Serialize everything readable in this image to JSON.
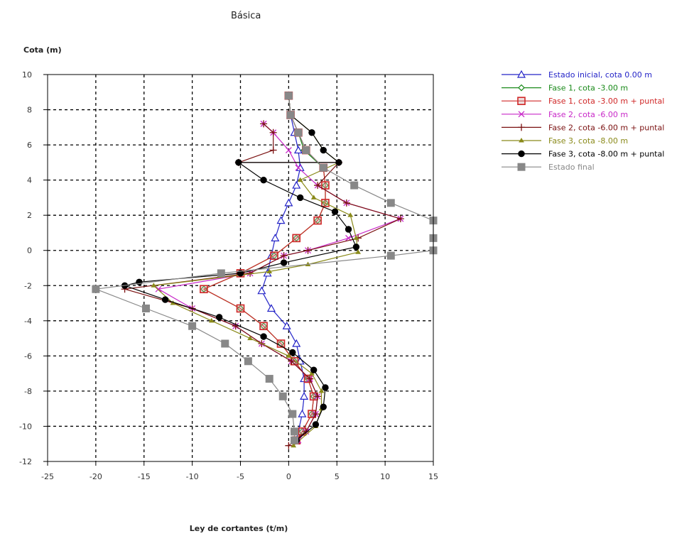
{
  "chart_data": {
    "type": "line",
    "title": "Básica",
    "xlabel": "Ley de cortantes (t/m)",
    "ylabel": "Cota (m)",
    "xlim": [
      -25,
      15
    ],
    "ylim": [
      -12,
      10
    ],
    "xticks": [
      -25,
      -20,
      -15,
      -10,
      -5,
      0,
      5,
      10,
      15
    ],
    "yticks": [
      10,
      8,
      6,
      4,
      2,
      0,
      -2,
      -4,
      -6,
      -8,
      -10,
      -12
    ],
    "grid": true,
    "legend_position": "right",
    "series": [
      {
        "name": "Estado inicial, cota 0.00 m",
        "color": "#2424c8",
        "marker": "triangle-open",
        "points": [
          [
            0.0,
            8.8
          ],
          [
            0.2,
            7.7
          ],
          [
            0.6,
            6.7
          ],
          [
            1.0,
            5.7
          ],
          [
            1.2,
            4.7
          ],
          [
            0.8,
            3.7
          ],
          [
            0.0,
            2.7
          ],
          [
            -0.8,
            1.7
          ],
          [
            -1.4,
            0.7
          ],
          [
            -1.8,
            -0.3
          ],
          [
            -2.2,
            -1.3
          ],
          [
            -2.8,
            -2.3
          ],
          [
            -1.8,
            -3.3
          ],
          [
            -0.2,
            -4.3
          ],
          [
            0.8,
            -5.3
          ],
          [
            1.2,
            -6.3
          ],
          [
            1.6,
            -7.3
          ],
          [
            1.6,
            -8.3
          ],
          [
            1.4,
            -9.3
          ],
          [
            1.0,
            -10.3
          ],
          [
            0.8,
            -10.8
          ]
        ]
      },
      {
        "name": "Fase 1, cota -3.00 m",
        "color": "#1a8a1a",
        "marker": "diamond-open",
        "points": [
          [
            0.0,
            8.8
          ],
          [
            0.2,
            7.7
          ],
          [
            1.0,
            6.7
          ],
          [
            1.6,
            5.7
          ],
          [
            3.6,
            4.7
          ],
          [
            3.8,
            3.7
          ],
          [
            3.8,
            2.7
          ],
          [
            3.0,
            1.7
          ],
          [
            0.8,
            0.7
          ],
          [
            -1.5,
            -0.3
          ],
          [
            -5.0,
            -1.3
          ],
          [
            -8.8,
            -2.2
          ],
          [
            -5.0,
            -3.3
          ],
          [
            -2.6,
            -4.3
          ],
          [
            -0.8,
            -5.3
          ],
          [
            0.6,
            -6.3
          ],
          [
            2.0,
            -7.3
          ],
          [
            2.6,
            -8.3
          ],
          [
            2.4,
            -9.3
          ],
          [
            1.4,
            -10.3
          ],
          [
            0.8,
            -10.8
          ]
        ]
      },
      {
        "name": "Fase 1, cota -3.00 m + puntal",
        "color": "#d02828",
        "marker": "square-open",
        "points": [
          [
            0.0,
            8.8
          ],
          [
            0.2,
            7.7
          ],
          [
            1.0,
            6.7
          ],
          [
            1.8,
            5.7
          ],
          [
            3.6,
            4.7
          ],
          [
            3.8,
            3.7
          ],
          [
            3.8,
            2.7
          ],
          [
            3.0,
            1.7
          ],
          [
            0.8,
            0.7
          ],
          [
            -1.5,
            -0.3
          ],
          [
            -5.0,
            -1.3
          ],
          [
            -8.8,
            -2.2
          ],
          [
            -5.0,
            -3.3
          ],
          [
            -2.6,
            -4.3
          ],
          [
            -0.8,
            -5.3
          ],
          [
            0.6,
            -6.3
          ],
          [
            2.0,
            -7.3
          ],
          [
            2.6,
            -8.3
          ],
          [
            2.4,
            -9.3
          ],
          [
            1.4,
            -10.3
          ],
          [
            0.8,
            -10.8
          ]
        ]
      },
      {
        "name": "Fase 2, cota -6.00 m",
        "color": "#c828c8",
        "marker": "x",
        "points": [
          [
            -2.6,
            7.2
          ],
          [
            -1.6,
            6.7
          ],
          [
            0.0,
            5.7
          ],
          [
            1.0,
            4.7
          ],
          [
            3.0,
            3.7
          ],
          [
            6.0,
            2.7
          ],
          [
            11.6,
            1.8
          ],
          [
            6.2,
            0.7
          ],
          [
            2.0,
            0.0
          ],
          [
            -0.5,
            -0.3
          ],
          [
            -4.0,
            -1.3
          ],
          [
            -13.5,
            -2.2
          ],
          [
            -10.0,
            -3.3
          ],
          [
            -5.5,
            -4.3
          ],
          [
            -2.8,
            -5.3
          ],
          [
            0.3,
            -6.3
          ],
          [
            2.2,
            -7.3
          ],
          [
            3.0,
            -8.3
          ],
          [
            2.8,
            -9.3
          ],
          [
            1.8,
            -10.3
          ],
          [
            1.0,
            -10.8
          ]
        ]
      },
      {
        "name": "Fase 2, cota -6.00 m + puntal",
        "color": "#7a1010",
        "marker": "plus",
        "points": [
          [
            -2.6,
            7.2
          ],
          [
            -1.6,
            6.7
          ],
          [
            -1.6,
            5.7
          ],
          [
            -5.2,
            5.0
          ],
          [
            5.2,
            5.0
          ],
          [
            3.0,
            3.7
          ],
          [
            6.0,
            2.7
          ],
          [
            11.6,
            1.8
          ],
          [
            7.2,
            0.7
          ],
          [
            2.0,
            0.0
          ],
          [
            -0.5,
            -0.3
          ],
          [
            -4.0,
            -1.3
          ],
          [
            -17.0,
            -2.2
          ],
          [
            -10.0,
            -3.3
          ],
          [
            -5.5,
            -4.3
          ],
          [
            -2.8,
            -5.3
          ],
          [
            0.3,
            -6.3
          ],
          [
            2.2,
            -7.3
          ],
          [
            3.0,
            -8.3
          ],
          [
            2.8,
            -9.3
          ],
          [
            1.8,
            -10.3
          ],
          [
            0.0,
            -11.1
          ]
        ]
      },
      {
        "name": "Fase 3, cota -8.00 m",
        "color": "#8a8a1a",
        "marker": "triangle-filled",
        "points": [
          [
            0.0,
            8.8
          ],
          [
            0.2,
            7.7
          ],
          [
            2.4,
            6.7
          ],
          [
            3.6,
            5.7
          ],
          [
            5.2,
            5.0
          ],
          [
            1.2,
            4.0
          ],
          [
            2.6,
            3.0
          ],
          [
            6.4,
            2.0
          ],
          [
            7.0,
            0.7
          ],
          [
            7.2,
            -0.1
          ],
          [
            2.0,
            -0.8
          ],
          [
            -2.0,
            -1.2
          ],
          [
            -14.0,
            -2.0
          ],
          [
            -12.0,
            -3.0
          ],
          [
            -8.0,
            -4.0
          ],
          [
            -4.0,
            -5.0
          ],
          [
            0.0,
            -6.0
          ],
          [
            2.4,
            -7.0
          ],
          [
            3.4,
            -8.0
          ],
          [
            3.4,
            -9.0
          ],
          [
            2.8,
            -10.0
          ],
          [
            0.5,
            -11.1
          ]
        ]
      },
      {
        "name": "Fase 3, cota -8.00 m + puntal",
        "color": "#000000",
        "marker": "diamond-filled",
        "points": [
          [
            0.0,
            8.8
          ],
          [
            0.2,
            7.7
          ],
          [
            2.4,
            6.7
          ],
          [
            3.6,
            5.7
          ],
          [
            5.2,
            5.0
          ],
          [
            -5.2,
            5.0
          ],
          [
            -2.6,
            4.0
          ],
          [
            1.2,
            3.0
          ],
          [
            4.8,
            2.2
          ],
          [
            6.2,
            1.2
          ],
          [
            7.0,
            0.2
          ],
          [
            -0.5,
            -0.7
          ],
          [
            -5.0,
            -1.3
          ],
          [
            -15.5,
            -1.8
          ],
          [
            -17.0,
            -2.0
          ],
          [
            -12.8,
            -2.8
          ],
          [
            -7.2,
            -3.8
          ],
          [
            -2.6,
            -4.9
          ],
          [
            0.4,
            -5.8
          ],
          [
            2.6,
            -6.8
          ],
          [
            3.8,
            -7.8
          ],
          [
            3.6,
            -8.9
          ],
          [
            2.8,
            -9.9
          ],
          [
            0.8,
            -10.8
          ]
        ]
      },
      {
        "name": "Estado final",
        "color": "#888888",
        "marker": "square-filled",
        "points": [
          [
            0.0,
            8.8
          ],
          [
            0.2,
            7.7
          ],
          [
            1.0,
            6.7
          ],
          [
            1.8,
            5.7
          ],
          [
            3.6,
            4.7
          ],
          [
            6.8,
            3.7
          ],
          [
            10.6,
            2.7
          ],
          [
            15.0,
            1.7
          ],
          [
            15.0,
            0.7
          ],
          [
            15.0,
            0.0
          ],
          [
            10.6,
            -0.3
          ],
          [
            -7.0,
            -1.3
          ],
          [
            -20.0,
            -2.2
          ],
          [
            -14.8,
            -3.3
          ],
          [
            -10.0,
            -4.3
          ],
          [
            -6.6,
            -5.3
          ],
          [
            -4.2,
            -6.3
          ],
          [
            -2.0,
            -7.3
          ],
          [
            -0.6,
            -8.3
          ],
          [
            0.4,
            -9.3
          ],
          [
            0.6,
            -10.3
          ],
          [
            0.6,
            -10.8
          ]
        ]
      }
    ]
  }
}
